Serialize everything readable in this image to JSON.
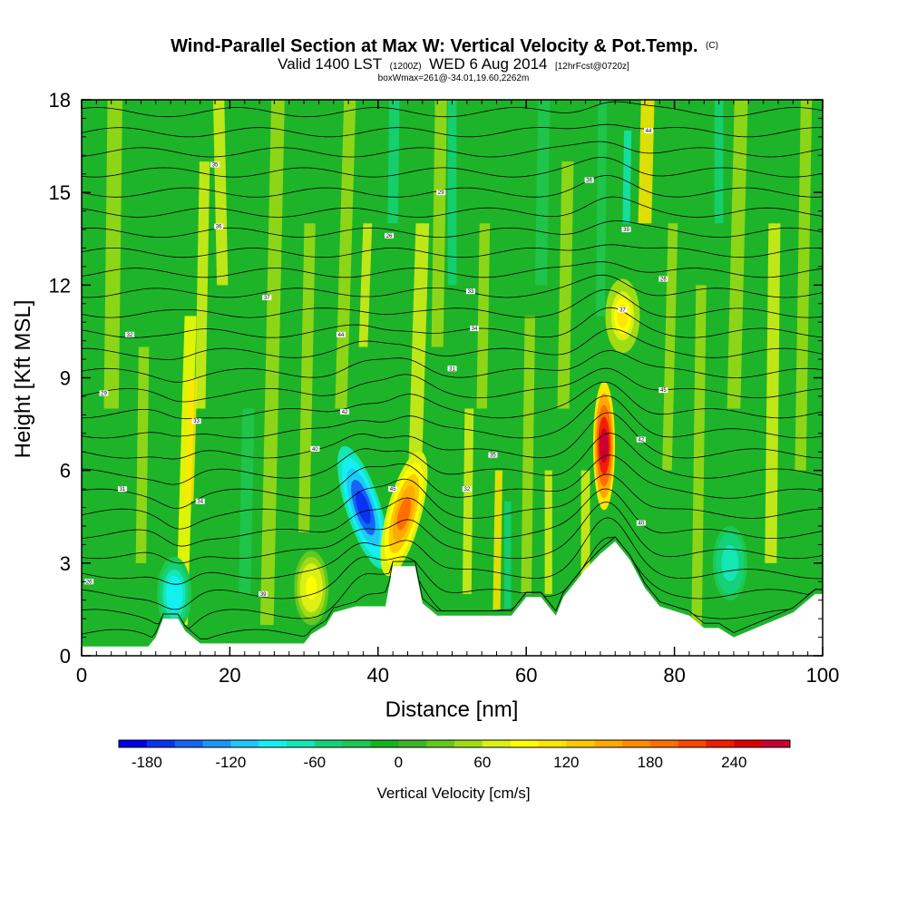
{
  "chart_data": {
    "type": "heatmap",
    "title": "Wind-Parallel Section at Max W: Vertical Velocity & Pot.Temp.",
    "title_mark": "(C)",
    "subtitle_parts": [
      "Valid 1400 LST",
      "(1200Z)",
      "WED 6 Aug 2014",
      "[12hrFcst@0720z]"
    ],
    "subtitle2": "boxWmax=261@-34.01,19.60,2262m",
    "xlabel": "Distance [nm]",
    "ylabel": "Height [Kft MSL]",
    "xlim": [
      0,
      100
    ],
    "ylim": [
      0,
      18
    ],
    "xticks": [
      0,
      20,
      40,
      60,
      80,
      100
    ],
    "yticks": [
      0,
      3,
      6,
      9,
      12,
      15,
      18
    ],
    "colorbar": {
      "label": "Vertical Velocity [cm/s]",
      "range": [
        -200,
        280
      ],
      "step": 20,
      "tick_labels": [
        -180,
        -120,
        -60,
        0,
        60,
        120,
        180,
        240
      ],
      "colors": [
        "#0000e6",
        "#0a32f0",
        "#1464f5",
        "#1e96f5",
        "#1ec8fa",
        "#14f0f0",
        "#14e6b4",
        "#14d278",
        "#1ec850",
        "#14b41e",
        "#3cb428",
        "#64c81e",
        "#a0dc14",
        "#dcf014",
        "#ffff00",
        "#ffe600",
        "#ffc800",
        "#ffaa00",
        "#ff8c00",
        "#ff6e00",
        "#ff4600",
        "#f01e00",
        "#dc0000",
        "#c80032"
      ]
    },
    "features": [
      {
        "name": "downdraft",
        "x": 38,
        "height": 4.8,
        "peak_w": -170
      },
      {
        "name": "updraft",
        "x": 43.5,
        "height": 4.6,
        "peak_w": 180
      },
      {
        "name": "updraft",
        "x": 70.5,
        "height": 6.8,
        "peak_w": 261
      },
      {
        "name": "updraft",
        "x": 73,
        "height": 11,
        "peak_w": 100
      },
      {
        "name": "updraft",
        "x": 31,
        "height": 2.2,
        "peak_w": 90
      },
      {
        "name": "downdraft",
        "x": 87.5,
        "height": 3,
        "peak_w": -80
      },
      {
        "name": "downdraft",
        "x": 12.5,
        "height": 2,
        "peak_w": -100
      }
    ],
    "terrain_kft": [
      [
        0,
        0.3
      ],
      [
        9,
        0.3
      ],
      [
        10,
        0.6
      ],
      [
        11,
        1.2
      ],
      [
        13,
        1.2
      ],
      [
        14,
        0.8
      ],
      [
        16,
        0.4
      ],
      [
        30,
        0.4
      ],
      [
        31,
        0.7
      ],
      [
        33,
        1
      ],
      [
        34,
        1.4
      ],
      [
        37,
        1.6
      ],
      [
        41,
        1.6
      ],
      [
        42,
        2.9
      ],
      [
        45,
        2.9
      ],
      [
        46,
        1.7
      ],
      [
        48,
        1.3
      ],
      [
        58,
        1.3
      ],
      [
        60,
        1.9
      ],
      [
        62,
        1.9
      ],
      [
        64,
        1.3
      ],
      [
        65,
        1.9
      ],
      [
        68,
        2.8
      ],
      [
        70,
        3.3
      ],
      [
        72,
        3.7
      ],
      [
        74,
        3.1
      ],
      [
        76,
        2.2
      ],
      [
        78,
        1.6
      ],
      [
        82,
        1.3
      ],
      [
        84,
        0.9
      ],
      [
        86,
        0.9
      ],
      [
        88,
        0.6
      ],
      [
        91,
        0.9
      ],
      [
        96,
        1.4
      ],
      [
        99,
        2.0
      ],
      [
        100,
        2.0
      ]
    ],
    "isentropes": {
      "count": 27,
      "base_height_kft": 0.7,
      "spacing_kft": 0.65,
      "label_values": [
        26,
        29,
        31,
        32,
        33,
        34,
        35,
        36,
        37,
        39,
        40,
        42,
        44,
        45
      ]
    }
  }
}
